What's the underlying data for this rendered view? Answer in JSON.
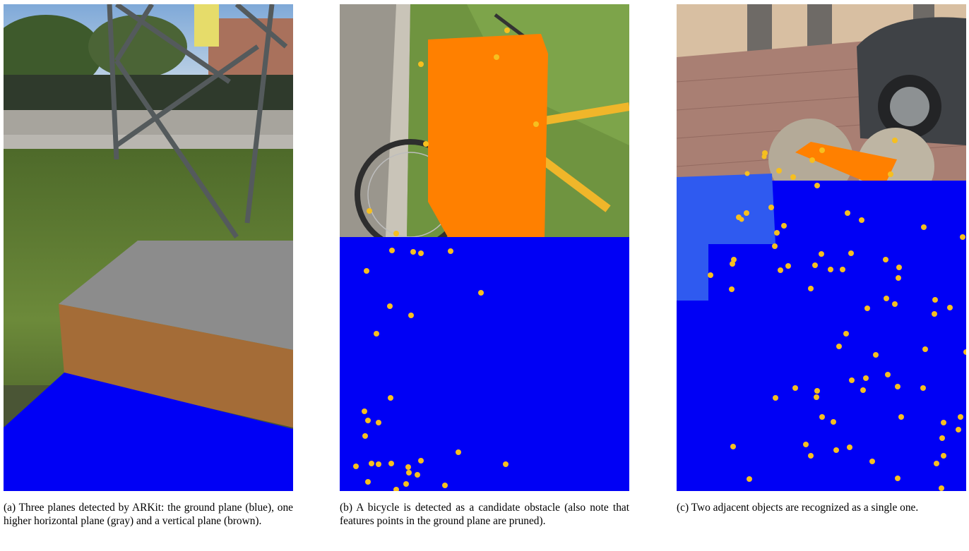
{
  "figure": {
    "panels": [
      {
        "id": "a",
        "caption": "(a) Three planes detected by ARKit: the ground plane (blue), one higher horizontal plane (gray) and a vertical plane (brown).",
        "colors": {
          "ground_plane": "#0000f5",
          "horizontal_plane": "#8c8c8c",
          "vertical_plane": "#a46c37"
        }
      },
      {
        "id": "b",
        "caption": "(b) A bicycle is detected as a candidate obstacle (also note that features points in the ground plane are pruned).",
        "colors": {
          "ground_plane": "#0000f5",
          "obstacle": "#ff8000",
          "feature_point": "#f6bf1f"
        }
      },
      {
        "id": "c",
        "caption": "(c) Two adjacent objects are recognized as a single one.",
        "colors": {
          "ground_plane": "#0000f5",
          "ground_plane_light": "#2f5af0",
          "obstacle": "#ff8000",
          "feature_point": "#f6bf1f"
        }
      }
    ]
  }
}
